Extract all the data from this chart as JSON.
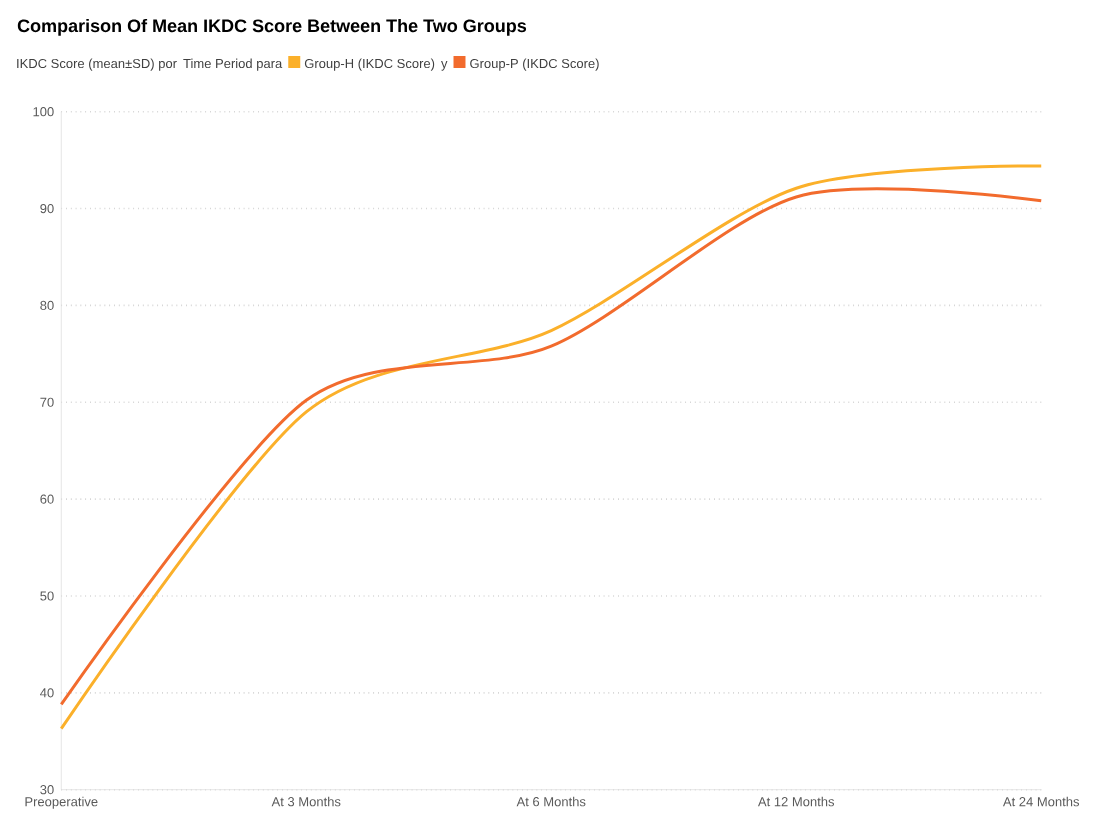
{
  "chart_data": {
    "type": "line",
    "title": "Comparison Of Mean IKDC Score Between The Two Groups",
    "annotations": [
      "IKDC Score (mean±SD) por",
      "Time Period para",
      "y"
    ],
    "categories": [
      "Preoperative",
      "At 3 Months",
      "At 6 Months",
      "At 12 Months",
      "At 24 Months"
    ],
    "series": [
      {
        "name": "Group-H (IKDC Score)",
        "color": "#fbb02a",
        "values": [
          36.3,
          69,
          77.4,
          92.1,
          94.4
        ]
      },
      {
        "name": "Group-P (IKDC Score)",
        "color": "#f26b2d",
        "values": [
          38.8,
          70.2,
          75.8,
          91.2,
          90.8
        ]
      }
    ],
    "ylim": [
      30,
      100
    ],
    "yticks": [
      30,
      40,
      50,
      60,
      70,
      80,
      90,
      100
    ],
    "grid": "y",
    "legend": "top left",
    "marker": "none",
    "line_style": "solid"
  }
}
